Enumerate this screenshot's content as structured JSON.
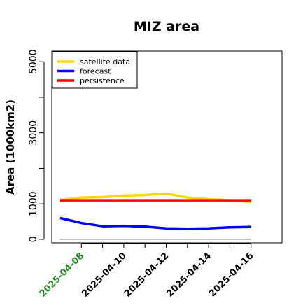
{
  "chart_data": {
    "type": "line",
    "title": "MIZ area",
    "xlabel": "",
    "ylabel": "Area (1000km2)",
    "x": [
      "2025-04-07",
      "2025-04-08",
      "2025-04-09",
      "2025-04-10",
      "2025-04-11",
      "2025-04-12",
      "2025-04-13",
      "2025-04-14",
      "2025-04-15",
      "2025-04-16"
    ],
    "x_tick_labels": [
      "2025-04-08",
      "2025-04-10",
      "2025-04-12",
      "2025-04-14",
      "2025-04-16"
    ],
    "x_tick_colors": [
      "#228B22",
      "#000000",
      "#000000",
      "#000000",
      "#000000"
    ],
    "y_ticks": [
      0,
      1000,
      3000,
      5000
    ],
    "ylim": [
      -100,
      5300
    ],
    "grid": false,
    "legend_position": "top-left",
    "series": [
      {
        "name": "satellite data",
        "color": "#FFD700",
        "values": [
          1100,
          1180,
          1190,
          1230,
          1250,
          1290,
          1180,
          1130,
          1100,
          1050
        ]
      },
      {
        "name": "forecast",
        "color": "#0000FF",
        "values": [
          600,
          460,
          370,
          380,
          360,
          310,
          300,
          310,
          340,
          350
        ]
      },
      {
        "name": "persistence",
        "color": "#FF0000",
        "values": [
          1100,
          1100,
          1100,
          1100,
          1100,
          1100,
          1100,
          1100,
          1100,
          1100
        ]
      }
    ],
    "reference_line": {
      "value": 0,
      "color": "#808080"
    }
  }
}
